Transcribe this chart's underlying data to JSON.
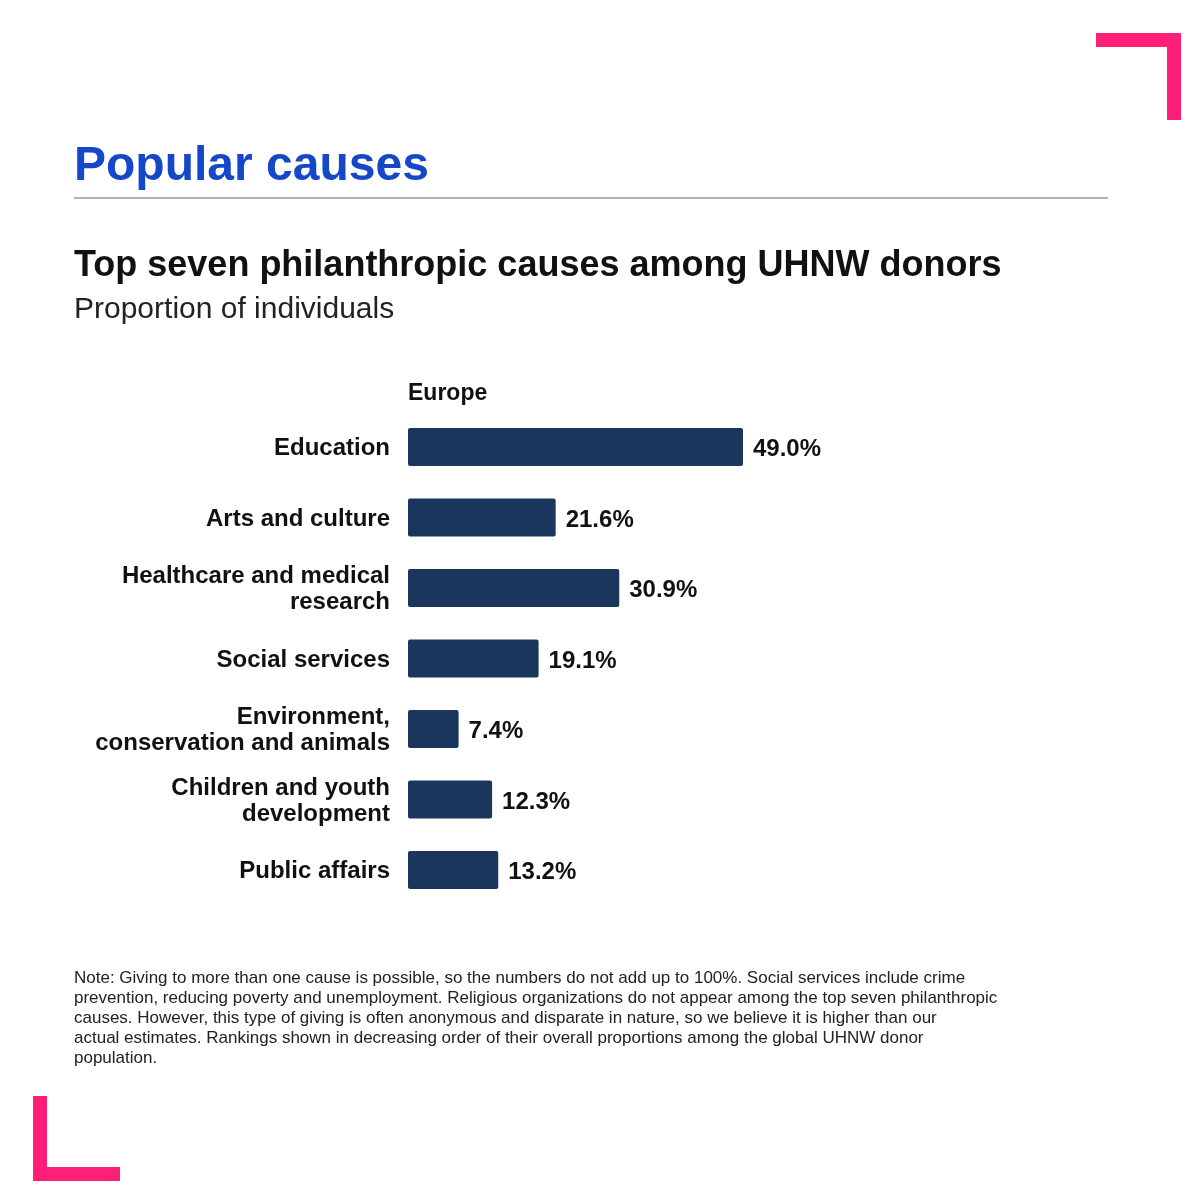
{
  "chart_data": {
    "type": "bar",
    "orientation": "horizontal",
    "title": "Popular causes",
    "subtitle": "Top seven philanthropic causes among UHNW donors",
    "categories": [
      "Education",
      "Arts and culture",
      "Healthcare and medical research",
      "Social services",
      "Environment, conservation and animals",
      "Children and youth development",
      "Public affairs"
    ],
    "series": [
      {
        "name": "Europe",
        "color": "#1b365d",
        "values": [
          49.0,
          21.6,
          30.9,
          19.1,
          7.4,
          12.3,
          13.2
        ],
        "value_labels": [
          "49.0%",
          "21.6%",
          "30.9%",
          "19.1%",
          "7.4%",
          "12.3%",
          "13.2%"
        ]
      }
    ],
    "annotations": [
      "Proportion of individuals",
      "Note: Giving to more than one cause is possible, so the numbers do not add up to 100%. Social services include crime prevention, reducing poverty and  unemployment. Religious organizations do not appear among the top seven philanthropic causes. However, this type of giving is often anonymous and disparate in nature, so we believe it is higher than our actual estimates. Rankings shown in decreasing order of  their overall proportions among the global UHNW donor population."
    ]
  }
}
